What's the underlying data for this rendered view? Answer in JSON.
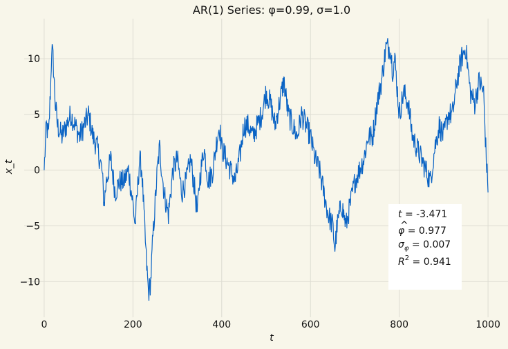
{
  "chart_data": {
    "type": "line",
    "title": "AR(1) Series: φ=0.99, σ=1.0",
    "xlabel": "t",
    "ylabel": "x_t",
    "xlim": [
      -45,
      1045
    ],
    "ylim": [
      -13.2,
      13.6
    ],
    "xticks": [
      0,
      200,
      400,
      600,
      800,
      1000
    ],
    "yticks": [
      -10,
      -5,
      0,
      5,
      10
    ],
    "ytick_labels": [
      "−10",
      "−5",
      "0",
      "5",
      "10"
    ],
    "grid": true,
    "line_color": "#0a63c4",
    "series": [
      {
        "x": [
          0,
          5,
          10,
          15,
          17,
          20,
          25,
          30,
          40,
          50,
          60,
          70,
          80,
          90,
          100,
          110,
          120,
          130,
          135,
          140,
          150,
          160,
          170,
          180,
          190,
          200,
          205,
          210,
          215,
          220,
          230,
          235,
          240,
          245,
          250,
          255,
          260,
          265,
          270,
          280,
          290,
          300,
          310,
          320,
          330,
          340,
          345,
          350,
          360,
          370,
          380,
          390,
          395,
          400,
          410,
          420,
          430,
          440,
          450,
          460,
          470,
          480,
          490,
          500,
          510,
          520,
          530,
          540,
          550,
          560,
          570,
          580,
          590,
          600,
          610,
          620,
          630,
          640,
          650,
          655,
          660,
          670,
          680,
          690,
          700,
          710,
          720,
          730,
          740,
          750,
          760,
          770,
          780,
          785,
          790,
          800,
          810,
          820,
          830,
          840,
          850,
          860,
          870,
          880,
          890,
          900,
          910,
          920,
          930,
          940,
          950,
          960,
          970,
          980,
          990,
          995,
          1000
        ],
        "values": [
          0,
          4,
          3,
          8,
          11,
          10,
          6,
          4,
          3,
          4,
          5,
          4,
          3,
          4,
          5,
          3,
          2,
          0,
          -3,
          -1,
          1,
          -2,
          -1,
          -1,
          0,
          -3,
          -5,
          -2,
          1,
          0,
          -8,
          -11,
          -10,
          -6,
          -3,
          0,
          2,
          0,
          -2,
          -4,
          0,
          1,
          -2,
          -1,
          1,
          -2,
          -4,
          -1,
          2,
          -1,
          0,
          3,
          4,
          2,
          1,
          0,
          -1,
          1,
          4,
          4,
          3,
          4,
          5,
          7,
          6,
          4,
          6,
          8,
          5,
          4,
          3,
          5,
          4,
          3,
          1,
          0,
          -2,
          -4,
          -5,
          -7,
          -5,
          -3,
          -5,
          -3,
          -1,
          0,
          1,
          3,
          3,
          6,
          8,
          11,
          11,
          9,
          10,
          5,
          7,
          6,
          3,
          2,
          1,
          0,
          -1,
          2,
          4,
          3,
          5,
          5,
          8,
          10,
          11,
          7,
          6,
          8,
          7,
          2,
          -2
        ]
      }
    ]
  },
  "stats": {
    "t_label": "t",
    "t_value": " = -3.471",
    "phi_label": "φ",
    "phi_hat_mark": "^",
    "phi_value": " = 0.977",
    "sigma_label": "σ",
    "sigma_value": " = 0.007",
    "r2_label": "R",
    "r2_sup": "2",
    "r2_value": " = 0.941"
  }
}
